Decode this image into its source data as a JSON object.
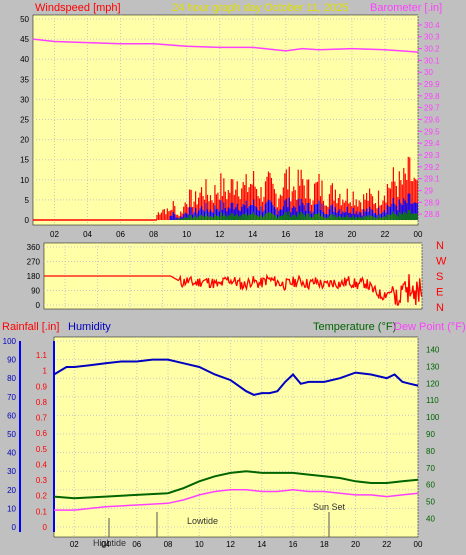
{
  "header": {
    "wind_label": "Windspeed [mph]",
    "title": "24 hour graph day   October 11, 2025",
    "baro_label": "Barometer [.in]"
  },
  "section3_header": {
    "rain_label": "Rainfall [.in]",
    "humidity_label": "Humidity",
    "temp_label": "Temperature (°F)",
    "dew_label": "Dew Point (°F)"
  },
  "colors": {
    "background": "#c0c0c0",
    "plot_bg": "#ffffa8",
    "wind": "#ff0000",
    "gust": "#0000ff",
    "low_wind": "#008000",
    "barometer": "#ff40ff",
    "direction": "#ff0000",
    "humidity": "#0000c0",
    "temperature": "#006400",
    "dewpoint": "#ff40ff",
    "title": "#e0e000"
  },
  "chart_data": [
    {
      "type": "line",
      "title": "24 hour graph day   October 11, 2025",
      "xlabel": "",
      "ylabel": "Windspeed [mph]",
      "y2label": "Barometer [.in]",
      "x_ticks": [
        "02",
        "04",
        "06",
        "08",
        "10",
        "12",
        "14",
        "16",
        "18",
        "20",
        "22",
        "00"
      ],
      "xlim": [
        0.7,
        24
      ],
      "ylim": [
        0,
        50
      ],
      "y_ticks": [
        0,
        5,
        10,
        15,
        20,
        25,
        30,
        35,
        40,
        45,
        50
      ],
      "y2lim": [
        28.75,
        30.45
      ],
      "y2_ticks": [
        "28.8",
        "28.9",
        "29",
        "29.1",
        "29.2",
        "29.3",
        "29.4",
        "29.5",
        "29.6",
        "29.7",
        "29.8",
        "29.9",
        "30",
        "30.1",
        "30.2",
        "30.3",
        "30.4"
      ],
      "grid": true,
      "series": [
        {
          "name": "Windspeed [mph]",
          "axis": "left",
          "x": [
            0.7,
            8,
            8.3,
            8.6,
            8.9,
            9.2,
            9.5,
            9.8,
            10,
            10.5,
            11,
            11.5,
            12,
            12.5,
            13,
            13.5,
            14,
            14.5,
            15,
            15.5,
            16,
            16.5,
            17,
            17.5,
            18,
            18.5,
            19,
            19.5,
            20,
            20.5,
            21,
            21.5,
            22,
            22.5,
            23,
            23.5,
            24
          ],
          "values": [
            0,
            0,
            2,
            3,
            2,
            4,
            1,
            3,
            6,
            5,
            8,
            6,
            9,
            7,
            11,
            8,
            10,
            7,
            9,
            6,
            11,
            8,
            10,
            7,
            9,
            6,
            8,
            6,
            7,
            5,
            6,
            5,
            8,
            10,
            9,
            12,
            7
          ]
        },
        {
          "name": "Barometer [.in]",
          "axis": "right",
          "x": [
            0.7,
            2,
            4,
            6,
            8,
            10,
            12,
            14,
            16,
            17,
            18,
            20,
            22,
            23,
            24
          ],
          "values": [
            30.28,
            30.26,
            30.25,
            30.24,
            30.24,
            30.22,
            30.21,
            30.21,
            30.18,
            30.2,
            30.19,
            30.2,
            30.19,
            30.18,
            30.17
          ]
        }
      ]
    },
    {
      "type": "line",
      "ylabel": "",
      "y2_labels": [
        "N",
        "W",
        "S",
        "E",
        "N"
      ],
      "ylim": [
        0,
        360
      ],
      "y_ticks": [
        0,
        90,
        180,
        270,
        360
      ],
      "xlim": [
        0.7,
        24
      ],
      "grid": true,
      "series": [
        {
          "name": "Wind direction",
          "x": [
            0.7,
            8.5,
            9.2,
            9.5,
            10,
            10.5,
            11,
            11.5,
            12,
            12.5,
            13,
            13.5,
            14,
            14.5,
            15,
            15.5,
            16,
            16.5,
            17,
            17.5,
            18,
            18.5,
            19,
            19.5,
            20,
            20.5,
            21,
            21.5,
            22,
            22.5,
            23,
            23.5,
            24
          ],
          "values": [
            180,
            180,
            140,
            150,
            135,
            150,
            140,
            120,
            160,
            145,
            120,
            150,
            130,
            160,
            145,
            125,
            140,
            150,
            130,
            145,
            120,
            140,
            130,
            150,
            125,
            140,
            90,
            60,
            80,
            40,
            100,
            70,
            90
          ]
        }
      ]
    },
    {
      "type": "line",
      "ylabel": "Rainfall [.in]",
      "y2label": "Temperature (°F)",
      "humidity_ticks": [
        0,
        10,
        20,
        30,
        40,
        50,
        60,
        70,
        80,
        90,
        100
      ],
      "rain_ticks": [
        "0",
        "0.1",
        "0.2",
        "0.3",
        "0.4",
        "0.5",
        "0.6",
        "0.7",
        "0.8",
        "0.9",
        "1",
        "1.1"
      ],
      "temp_ticks": [
        40,
        50,
        60,
        70,
        80,
        90,
        100,
        110,
        120,
        130,
        140
      ],
      "humidity_lim": [
        0,
        100
      ],
      "temp_lim": [
        35,
        145
      ],
      "x_ticks": [
        "02",
        "04",
        "06",
        "08",
        "10",
        "12",
        "14",
        "16",
        "18",
        "20",
        "22",
        "00"
      ],
      "xlim": [
        0.7,
        24
      ],
      "grid": true,
      "annotations": [
        "Hightide",
        "Lowtide",
        "Sun Set"
      ],
      "series": [
        {
          "name": "Humidity",
          "x": [
            0.7,
            1.5,
            2,
            3,
            4,
            5,
            6,
            7,
            8,
            9,
            10,
            11,
            12,
            13,
            13.5,
            14,
            14.5,
            15,
            15.5,
            16,
            16.5,
            17,
            18,
            19,
            20,
            21,
            22,
            22.5,
            23,
            23.5,
            24
          ],
          "values": [
            82,
            86,
            86,
            87,
            88,
            89,
            89,
            90,
            90,
            88,
            86,
            82,
            79,
            73,
            71,
            72,
            72,
            73,
            78,
            82,
            77,
            78,
            78,
            80,
            83,
            82,
            80,
            82,
            78,
            77,
            76
          ]
        },
        {
          "name": "Temperature (°F)",
          "x": [
            0.7,
            2,
            4,
            6,
            8,
            9,
            10,
            11,
            12,
            13,
            14,
            15,
            16,
            17,
            18,
            19,
            20,
            21,
            22,
            23,
            24
          ],
          "values": [
            53,
            52,
            53,
            54,
            55,
            58,
            62,
            65,
            67,
            68,
            67,
            67,
            67,
            66,
            65,
            64,
            62,
            61,
            61,
            62,
            63
          ]
        },
        {
          "name": "Dew Point (°F)",
          "x": [
            0.7,
            2,
            4,
            6,
            8,
            9,
            10,
            11,
            12,
            13,
            14,
            15,
            16,
            17,
            18,
            19,
            20,
            21,
            22,
            23,
            24
          ],
          "values": [
            45,
            45,
            47,
            48,
            49,
            51,
            54,
            56,
            57,
            57,
            56,
            56,
            57,
            56,
            56,
            55,
            54,
            54,
            53,
            54,
            55
          ]
        }
      ]
    }
  ]
}
